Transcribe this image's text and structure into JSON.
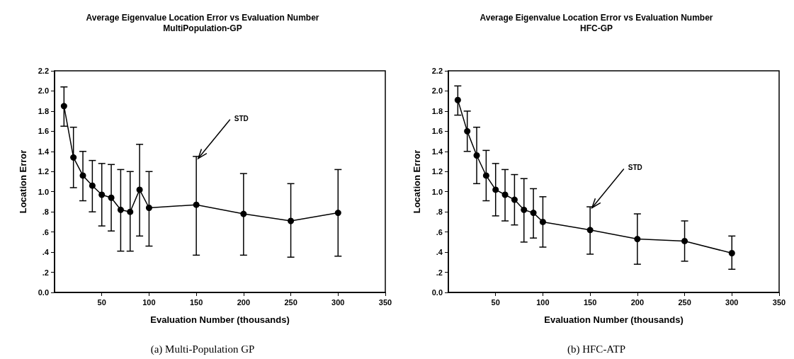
{
  "chart_data": [
    {
      "type": "line",
      "title": "Average Eigenvalue Location Error vs Evaluation Number",
      "subtitle": "MultiPopulation-GP",
      "xlabel": "Evaluation Number (thousands)",
      "ylabel": "Location Error",
      "x": [
        10,
        20,
        30,
        40,
        50,
        60,
        70,
        80,
        90,
        100,
        150,
        200,
        250,
        300
      ],
      "series": [
        {
          "color": "#000000",
          "values": [
            1.85,
            1.34,
            1.16,
            1.06,
            0.97,
            0.94,
            0.82,
            0.8,
            1.02,
            0.84,
            0.87,
            0.78,
            0.71,
            0.79
          ],
          "errors": [
            [
              1.65,
              2.04
            ],
            [
              1.04,
              1.64
            ],
            [
              0.91,
              1.4
            ],
            [
              0.8,
              1.31
            ],
            [
              0.66,
              1.28
            ],
            [
              0.61,
              1.27
            ],
            [
              0.41,
              1.22
            ],
            [
              0.41,
              1.2
            ],
            [
              0.56,
              1.47
            ],
            [
              0.46,
              1.2
            ],
            [
              0.37,
              1.35
            ],
            [
              0.37,
              1.18
            ],
            [
              0.35,
              1.08
            ],
            [
              0.36,
              1.22
            ]
          ]
        }
      ],
      "xlim": [
        0,
        350
      ],
      "xticks": [
        50,
        100,
        150,
        200,
        250,
        300,
        350
      ],
      "ylim": [
        0,
        2.2
      ],
      "yticks": [
        {
          "value": 0,
          "label": "0.0"
        },
        {
          "value": 0.2,
          "label": ".2"
        },
        {
          "value": 0.4,
          "label": ".4"
        },
        {
          "value": 0.6,
          "label": ".6"
        },
        {
          "value": 0.8,
          "label": ".8"
        },
        {
          "value": 1,
          "label": "1.0"
        },
        {
          "value": 1.2,
          "label": "1.2"
        },
        {
          "value": 1.4,
          "label": "1.4"
        },
        {
          "value": 1.6,
          "label": "1.6"
        },
        {
          "value": 1.8,
          "label": "1.8"
        },
        {
          "value": 2,
          "label": "2.0"
        },
        {
          "value": 2.2,
          "label": "2.2"
        }
      ],
      "grid": false,
      "marker": "circle",
      "line_style": "solid",
      "annotations": [
        {
          "text": "STD",
          "x": 152,
          "y": 1.33
        },
        "(a) Multi-Population GP"
      ]
    },
    {
      "type": "line",
      "title": "Average Eigenvalue Location Error vs Evaluation Number",
      "subtitle": "HFC-GP",
      "xlabel": "Evaluation Number (thousands)",
      "ylabel": "Location Error",
      "x": [
        10,
        20,
        30,
        40,
        50,
        60,
        70,
        80,
        90,
        100,
        150,
        200,
        250,
        300
      ],
      "series": [
        {
          "color": "#000000",
          "values": [
            1.91,
            1.6,
            1.36,
            1.16,
            1.02,
            0.97,
            0.92,
            0.82,
            0.79,
            0.7,
            0.62,
            0.53,
            0.51,
            0.39
          ],
          "errors": [
            [
              1.76,
              2.05
            ],
            [
              1.4,
              1.8
            ],
            [
              1.08,
              1.64
            ],
            [
              0.91,
              1.41
            ],
            [
              0.76,
              1.28
            ],
            [
              0.71,
              1.22
            ],
            [
              0.67,
              1.17
            ],
            [
              0.5,
              1.13
            ],
            [
              0.54,
              1.03
            ],
            [
              0.45,
              0.95
            ],
            [
              0.38,
              0.85
            ],
            [
              0.28,
              0.78
            ],
            [
              0.31,
              0.71
            ],
            [
              0.23,
              0.56
            ]
          ]
        }
      ],
      "xlim": [
        0,
        350
      ],
      "xticks": [
        50,
        100,
        150,
        200,
        250,
        300,
        350
      ],
      "ylim": [
        0,
        2.2
      ],
      "yticks": [
        {
          "value": 0,
          "label": "0.0"
        },
        {
          "value": 0.2,
          "label": ".2"
        },
        {
          "value": 0.4,
          "label": ".4"
        },
        {
          "value": 0.6,
          "label": ".6"
        },
        {
          "value": 0.8,
          "label": ".8"
        },
        {
          "value": 1,
          "label": "1.0"
        },
        {
          "value": 1.2,
          "label": "1.2"
        },
        {
          "value": 1.4,
          "label": "1.4"
        },
        {
          "value": 1.6,
          "label": "1.6"
        },
        {
          "value": 1.8,
          "label": "1.8"
        },
        {
          "value": 2,
          "label": "2.0"
        },
        {
          "value": 2.2,
          "label": "2.2"
        }
      ],
      "grid": false,
      "marker": "circle",
      "line_style": "solid",
      "annotations": [
        {
          "text": "STD",
          "x": 152,
          "y": 0.84
        },
        "(b) HFC-ATP"
      ]
    }
  ]
}
